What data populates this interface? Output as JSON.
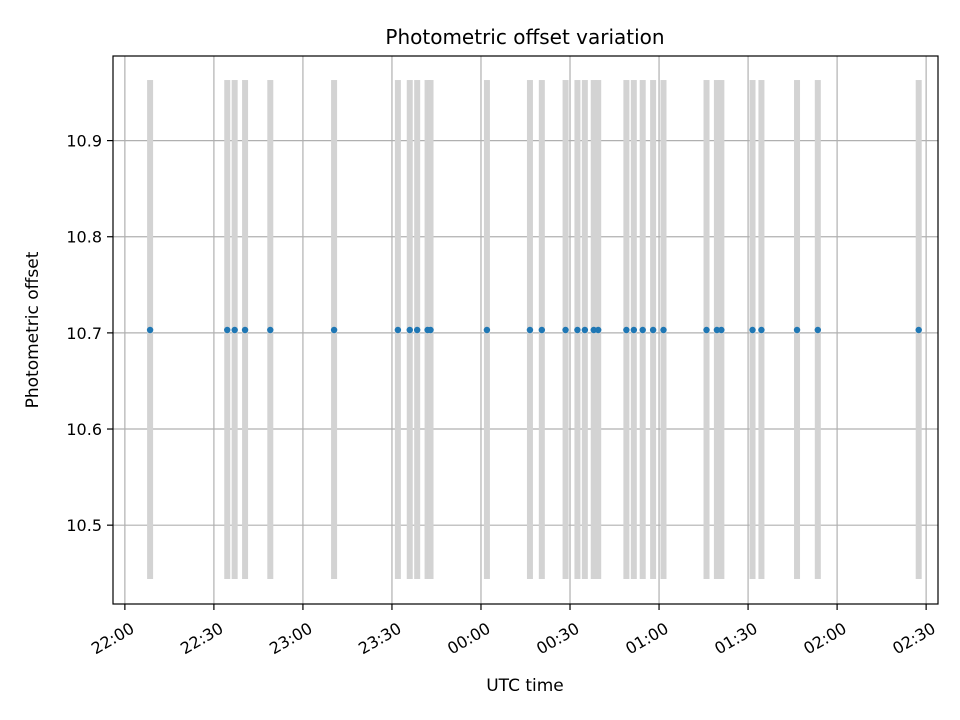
{
  "chart_data": {
    "type": "scatter",
    "title": "Photometric offset variation",
    "xlabel": "UTC time",
    "ylabel": "Photometric offset",
    "x_axis_kind": "time",
    "xlim": [
      "21:56",
      "02:34"
    ],
    "ylim": [
      10.418,
      10.988
    ],
    "grid": true,
    "x_ticks": [
      "22:00",
      "22:30",
      "23:00",
      "23:30",
      "00:00",
      "00:30",
      "01:00",
      "01:30",
      "02:00",
      "02:30"
    ],
    "y_ticks": [
      10.5,
      10.6,
      10.7,
      10.8,
      10.9
    ],
    "error_bar_color": "#d3d3d3",
    "point_color": "#1f77b4",
    "error_bar_range": [
      10.444,
      10.963
    ],
    "series": [
      {
        "x": [
          "22:08:30",
          "22:34:30",
          "22:37:00",
          "22:40:30",
          "22:49:00",
          "23:10:30",
          "23:32:00",
          "23:36:00",
          "23:38:30",
          "23:42:00",
          "23:43:00",
          "00:02:00",
          "00:16:30",
          "00:20:30",
          "00:28:30",
          "00:32:30",
          "00:35:00",
          "00:38:00",
          "00:39:30",
          "00:49:00",
          "00:51:30",
          "00:54:30",
          "00:58:00",
          "01:01:30",
          "01:16:00",
          "01:19:30",
          "01:21:00",
          "01:31:30",
          "01:34:30",
          "01:46:30",
          "01:53:30",
          "02:27:30"
        ],
        "y": [
          10.703,
          10.703,
          10.703,
          10.703,
          10.703,
          10.703,
          10.703,
          10.703,
          10.703,
          10.703,
          10.703,
          10.703,
          10.703,
          10.703,
          10.703,
          10.703,
          10.703,
          10.703,
          10.703,
          10.703,
          10.703,
          10.703,
          10.703,
          10.703,
          10.703,
          10.703,
          10.703,
          10.703,
          10.703,
          10.703,
          10.703,
          10.703
        ]
      }
    ]
  }
}
